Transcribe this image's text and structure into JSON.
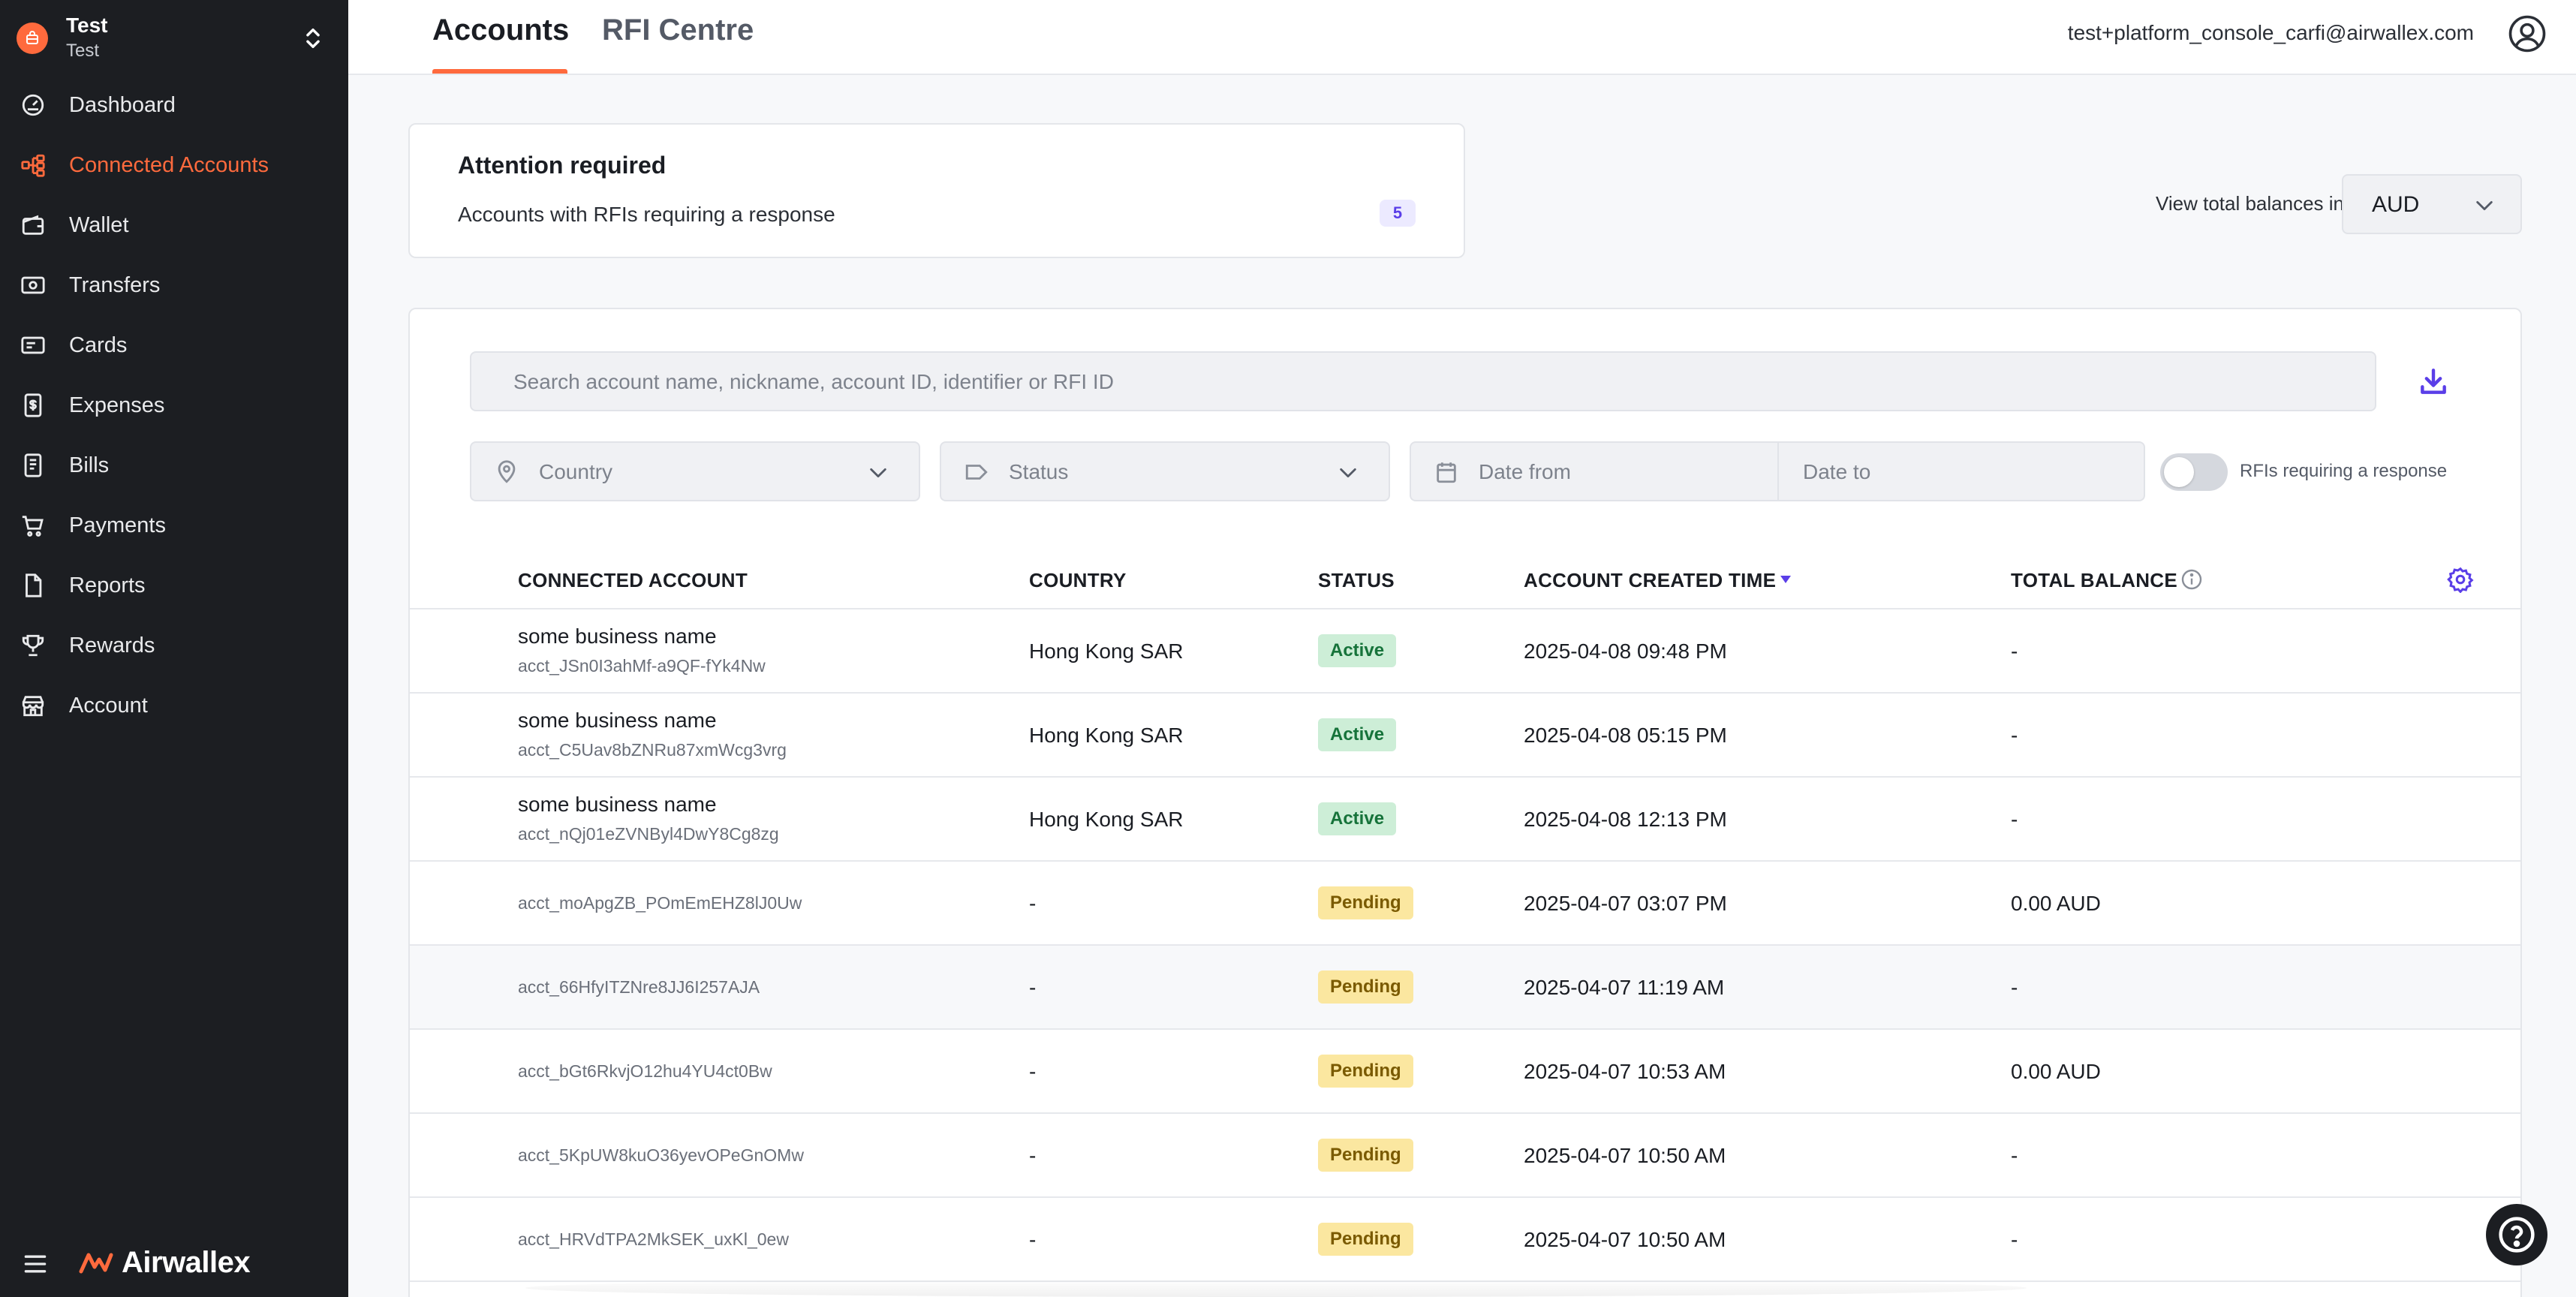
{
  "org": {
    "name": "Test",
    "subtitle": "Test"
  },
  "nav": [
    {
      "label": "Dashboard",
      "icon": "dashboard-icon",
      "active": false
    },
    {
      "label": "Connected Accounts",
      "icon": "connected-accounts-icon",
      "active": true
    },
    {
      "label": "Wallet",
      "icon": "wallet-icon",
      "active": false
    },
    {
      "label": "Transfers",
      "icon": "transfers-icon",
      "active": false
    },
    {
      "label": "Cards",
      "icon": "cards-icon",
      "active": false
    },
    {
      "label": "Expenses",
      "icon": "expenses-icon",
      "active": false
    },
    {
      "label": "Bills",
      "icon": "bills-icon",
      "active": false
    },
    {
      "label": "Payments",
      "icon": "payments-icon",
      "active": false
    },
    {
      "label": "Reports",
      "icon": "reports-icon",
      "active": false
    },
    {
      "label": "Rewards",
      "icon": "rewards-icon",
      "active": false
    },
    {
      "label": "Account",
      "icon": "account-icon",
      "active": false
    }
  ],
  "brand": {
    "name": "Airwallex",
    "color": "#ff6a3d"
  },
  "tabs": {
    "accounts": "Accounts",
    "rfi": "RFI Centre"
  },
  "user": {
    "email": "test+platform_console_carfi@airwallex.com"
  },
  "attention": {
    "title": "Attention required",
    "text": "Accounts with RFIs requiring a response",
    "count": "5"
  },
  "balances": {
    "label": "View total balances in",
    "currency": "AUD"
  },
  "search": {
    "placeholder": "Search account name, nickname, account ID, identifier or RFI ID"
  },
  "filters": {
    "country": "Country",
    "status": "Status",
    "date_from": "Date from",
    "date_to": "Date to",
    "rfi_toggle": "RFIs requiring a response",
    "rfi_toggle_on": false
  },
  "table": {
    "headers": {
      "account": "CONNECTED ACCOUNT",
      "country": "COUNTRY",
      "status": "STATUS",
      "created": "ACCOUNT CREATED TIME",
      "balance": "TOTAL BALANCE"
    },
    "rows": [
      {
        "name": "some business name",
        "id": "acct_JSn0I3ahMf-a9QF-fYk4Nw",
        "country": "Hong Kong SAR",
        "status": "Active",
        "created": "2025-04-08 09:48 PM",
        "balance": "-"
      },
      {
        "name": "some business name",
        "id": "acct_C5Uav8bZNRu87xmWcg3vrg",
        "country": "Hong Kong SAR",
        "status": "Active",
        "created": "2025-04-08 05:15 PM",
        "balance": "-"
      },
      {
        "name": "some business name",
        "id": "acct_nQj01eZVNByl4DwY8Cg8zg",
        "country": "Hong Kong SAR",
        "status": "Active",
        "created": "2025-04-08 12:13 PM",
        "balance": "-"
      },
      {
        "name": "",
        "id": "acct_moApgZB_POmEmEHZ8lJ0Uw",
        "country": "-",
        "status": "Pending",
        "created": "2025-04-07 03:07 PM",
        "balance": "0.00 AUD"
      },
      {
        "name": "",
        "id": "acct_66HfyITZNre8JJ6I257AJA",
        "country": "-",
        "status": "Pending",
        "created": "2025-04-07 11:19 AM",
        "balance": "-"
      },
      {
        "name": "",
        "id": "acct_bGt6RkvjO12hu4YU4ct0Bw",
        "country": "-",
        "status": "Pending",
        "created": "2025-04-07 10:53 AM",
        "balance": "0.00 AUD"
      },
      {
        "name": "",
        "id": "acct_5KpUW8kuO36yevOPeGnOMw",
        "country": "-",
        "status": "Pending",
        "created": "2025-04-07 10:50 AM",
        "balance": "-"
      },
      {
        "name": "",
        "id": "acct_HRVdTPA2MkSEK_uxKl_0ew",
        "country": "-",
        "status": "Pending",
        "created": "2025-04-07 10:50 AM",
        "balance": "-"
      }
    ]
  },
  "colors": {
    "accent": "#ff6a3d",
    "sidebar": "#1c1e22",
    "active_badge": "#cdeed7",
    "pending_badge": "#fbe7a0",
    "purple": "#5a3ee8"
  }
}
